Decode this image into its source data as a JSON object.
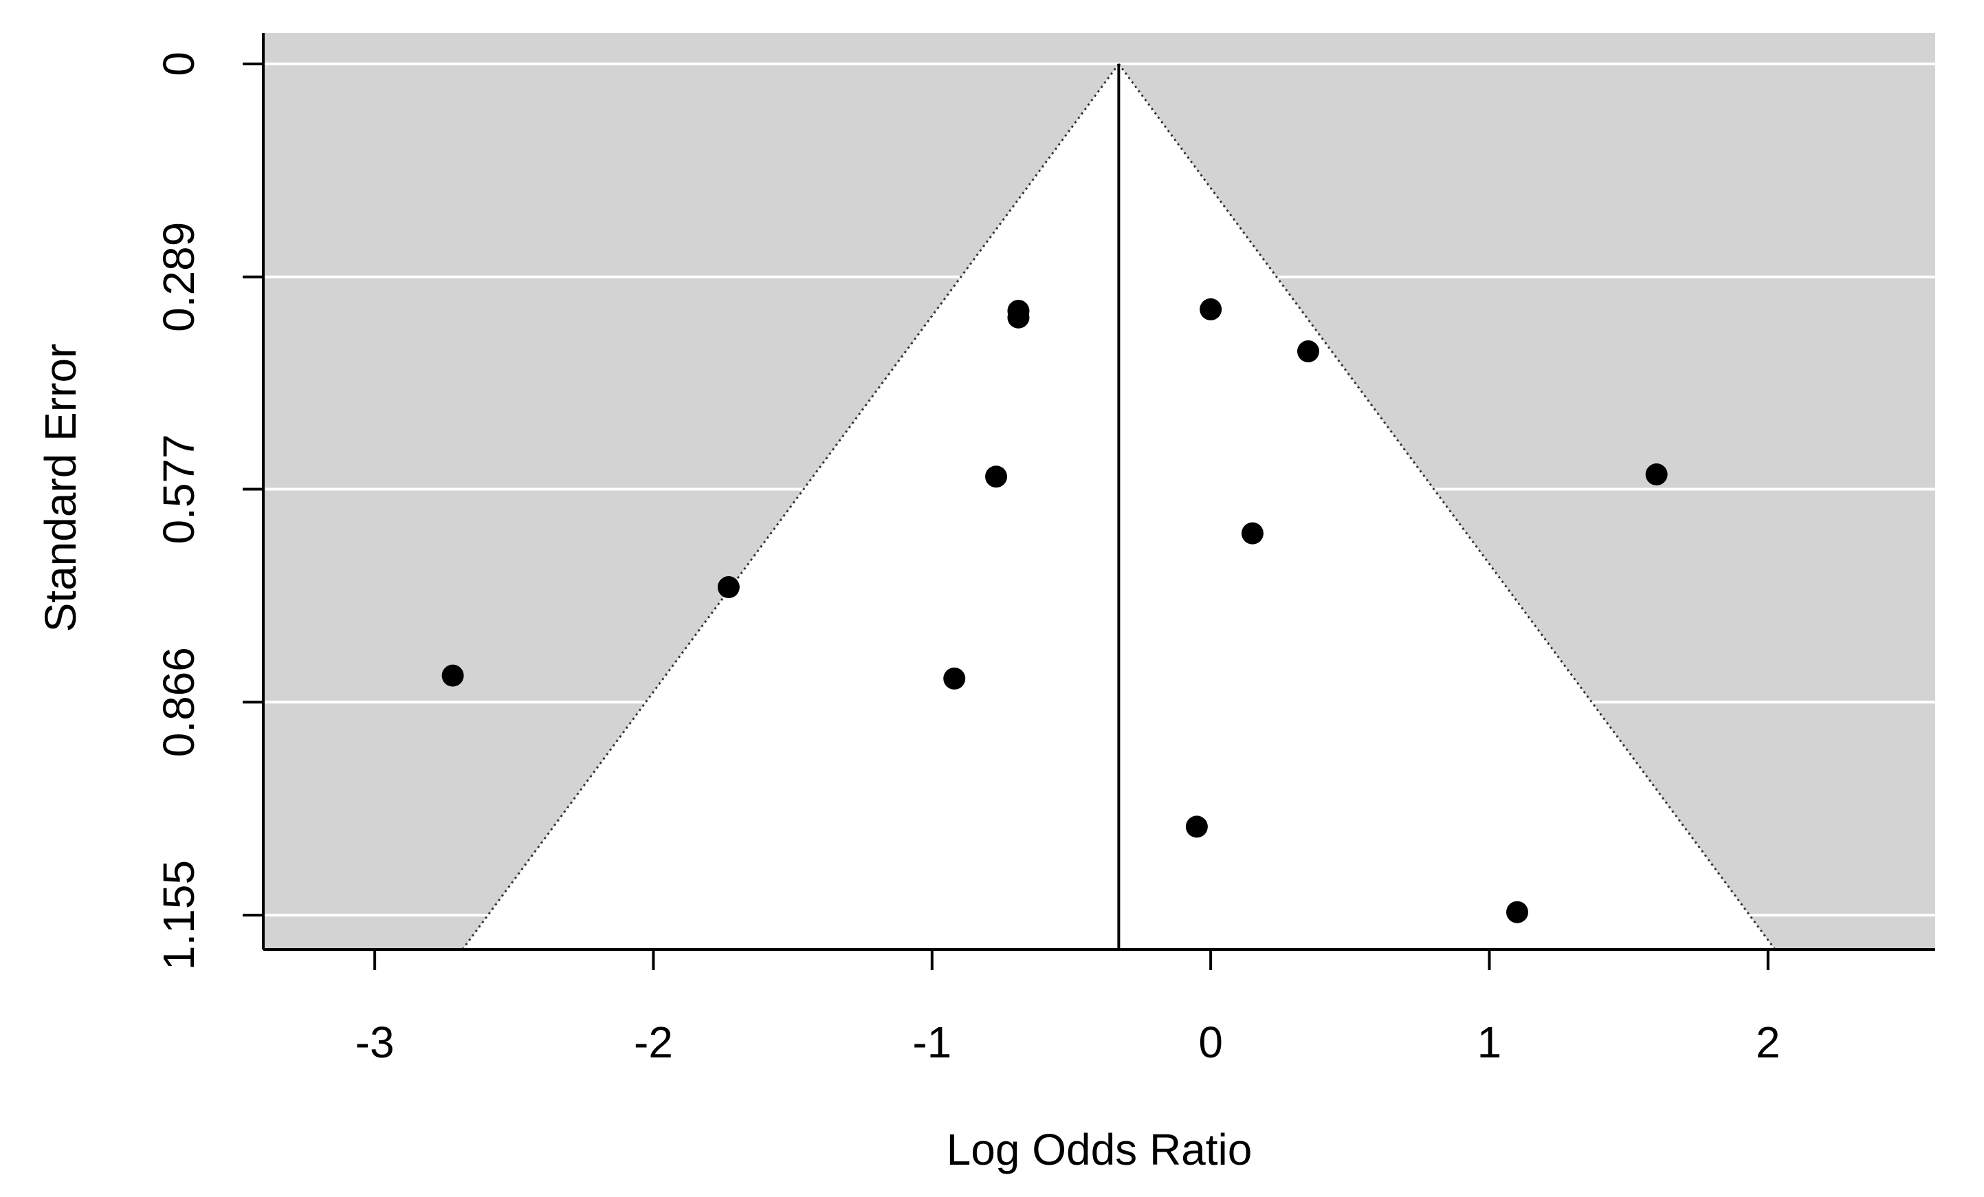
{
  "chart_data": {
    "type": "scatter",
    "subtype": "funnel-plot",
    "title": "",
    "xlabel": "Log Odds Ratio",
    "ylabel": "Standard Error",
    "xlim": [
      -3.4,
      2.6
    ],
    "ylim": [
      1.2,
      0
    ],
    "y_axis_inverted": true,
    "x_ticks": [
      "-3",
      "-2",
      "-1",
      "0",
      "1",
      "2"
    ],
    "y_ticks": [
      "0",
      "0.289",
      "0.577",
      "0.866",
      "1.155"
    ],
    "grid": "horizontal, white, at y ticks",
    "background_color": "#d3d3d3",
    "funnel": {
      "center": -0.33,
      "apex_se": 0,
      "multiplier": 1.96,
      "fill": "#ffffff",
      "edge_style": "dotted"
    },
    "reference_line_x": -0.33,
    "points": [
      {
        "x": -0.69,
        "y": 0.335
      },
      {
        "x": -0.69,
        "y": 0.344
      },
      {
        "x": 0.0,
        "y": 0.333
      },
      {
        "x": 0.35,
        "y": 0.39
      },
      {
        "x": -0.77,
        "y": 0.56
      },
      {
        "x": 1.6,
        "y": 0.557
      },
      {
        "x": 0.15,
        "y": 0.637
      },
      {
        "x": -1.73,
        "y": 0.71
      },
      {
        "x": -2.72,
        "y": 0.83
      },
      {
        "x": -0.92,
        "y": 0.834
      },
      {
        "x": -0.05,
        "y": 1.035
      },
      {
        "x": 1.1,
        "y": 1.151
      }
    ],
    "colors": {
      "points": "#000000",
      "grid": "#ffffff",
      "axis": "#000000"
    }
  }
}
